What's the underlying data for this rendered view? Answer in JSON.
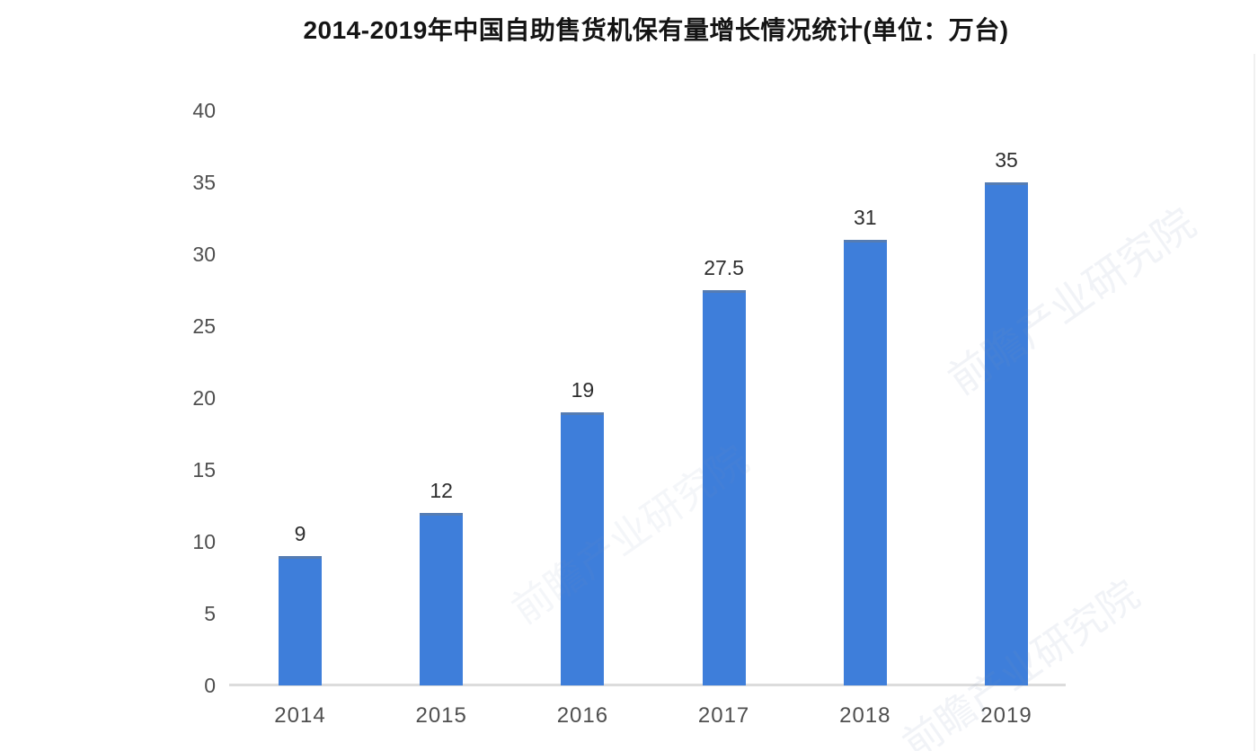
{
  "chart_data": {
    "type": "bar",
    "title": "2014-2019年中国自助售货机保有量增长情况统计(单位：万台)",
    "categories": [
      "2014",
      "2015",
      "2016",
      "2017",
      "2018",
      "2019"
    ],
    "values": [
      9,
      12,
      19,
      27.5,
      31,
      35
    ],
    "value_labels": [
      "9",
      "12",
      "19",
      "27.5",
      "31",
      "35"
    ],
    "xlabel": "",
    "ylabel": "",
    "ylim": [
      0,
      40
    ],
    "yticks": [
      0,
      5,
      10,
      15,
      20,
      25,
      30,
      35,
      40
    ],
    "grid": false,
    "legend": "none",
    "bar_color": "#3e7eda",
    "axis_line_color": "#dcdcdc",
    "tick_label_color": "#4f4f4f",
    "value_label_color": "#2e2e2e",
    "title_color": "#141414",
    "background_color": "#ffffff"
  },
  "watermark": {
    "text": "前瞻产业研究院"
  }
}
